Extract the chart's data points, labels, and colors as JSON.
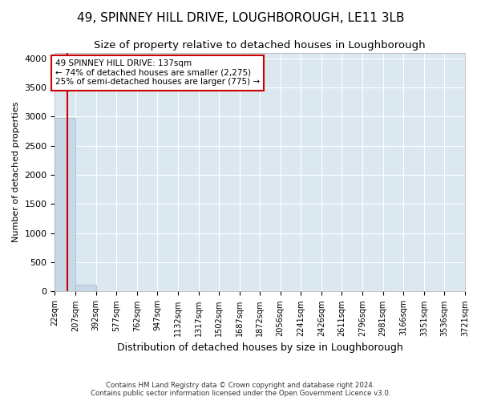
{
  "title": "49, SPINNEY HILL DRIVE, LOUGHBOROUGH, LE11 3LB",
  "subtitle": "Size of property relative to detached houses in Loughborough",
  "xlabel": "Distribution of detached houses by size in Loughborough",
  "ylabel": "Number of detached properties",
  "footnote1": "Contains HM Land Registry data © Crown copyright and database right 2024.",
  "footnote2": "Contains public sector information licensed under the Open Government Licence v3.0.",
  "bin_edges": [
    22,
    207,
    392,
    577,
    762,
    947,
    1132,
    1317,
    1502,
    1687,
    1872,
    2056,
    2241,
    2426,
    2611,
    2796,
    2981,
    3166,
    3351,
    3536,
    3721
  ],
  "bar_heights": [
    2980,
    110,
    0,
    0,
    0,
    0,
    0,
    0,
    0,
    0,
    0,
    0,
    0,
    0,
    0,
    0,
    0,
    0,
    0,
    0
  ],
  "bar_color": "#c8d8e8",
  "bar_edgecolor": "#a0b8cc",
  "property_line_x": 137,
  "property_line_color": "#cc0000",
  "annotation_text": "49 SPINNEY HILL DRIVE: 137sqm\n← 74% of detached houses are smaller (2,275)\n25% of semi-detached houses are larger (775) →",
  "annotation_box_color": "#ffffff",
  "annotation_box_edgecolor": "#cc0000",
  "ylim": [
    0,
    4100
  ],
  "yticks": [
    0,
    500,
    1000,
    1500,
    2000,
    2500,
    3000,
    3500,
    4000
  ],
  "title_fontsize": 11,
  "subtitle_fontsize": 9.5,
  "axis_bg_color": "#dce8f0",
  "fig_bg_color": "#ffffff",
  "grid_color": "#ffffff",
  "tick_label_fontsize": 7,
  "ylabel_fontsize": 8,
  "xlabel_fontsize": 9,
  "annotation_fontsize": 7.5
}
